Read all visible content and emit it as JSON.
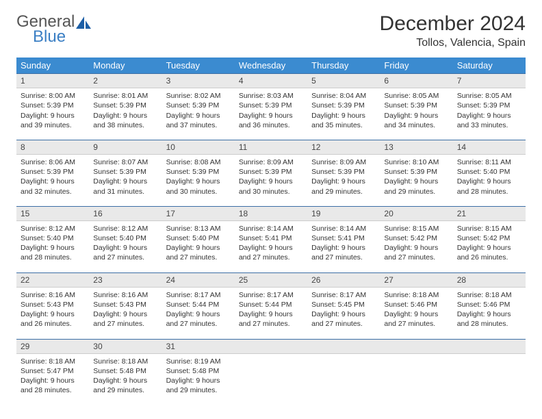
{
  "logo": {
    "word1": "General",
    "word2": "Blue",
    "sail_color": "#1d5fa6"
  },
  "title": "December 2024",
  "location": "Tollos, Valencia, Spain",
  "colors": {
    "header_bg": "#3b8bd0",
    "header_text": "#ffffff",
    "daynum_bg": "#e9e9e9",
    "daynum_border_top": "#3b6ea5",
    "body_text": "#333333"
  },
  "day_headers": [
    "Sunday",
    "Monday",
    "Tuesday",
    "Wednesday",
    "Thursday",
    "Friday",
    "Saturday"
  ],
  "weeks": [
    [
      {
        "n": "1",
        "sr": "8:00 AM",
        "ss": "5:39 PM",
        "dl": "9 hours and 39 minutes."
      },
      {
        "n": "2",
        "sr": "8:01 AM",
        "ss": "5:39 PM",
        "dl": "9 hours and 38 minutes."
      },
      {
        "n": "3",
        "sr": "8:02 AM",
        "ss": "5:39 PM",
        "dl": "9 hours and 37 minutes."
      },
      {
        "n": "4",
        "sr": "8:03 AM",
        "ss": "5:39 PM",
        "dl": "9 hours and 36 minutes."
      },
      {
        "n": "5",
        "sr": "8:04 AM",
        "ss": "5:39 PM",
        "dl": "9 hours and 35 minutes."
      },
      {
        "n": "6",
        "sr": "8:05 AM",
        "ss": "5:39 PM",
        "dl": "9 hours and 34 minutes."
      },
      {
        "n": "7",
        "sr": "8:05 AM",
        "ss": "5:39 PM",
        "dl": "9 hours and 33 minutes."
      }
    ],
    [
      {
        "n": "8",
        "sr": "8:06 AM",
        "ss": "5:39 PM",
        "dl": "9 hours and 32 minutes."
      },
      {
        "n": "9",
        "sr": "8:07 AM",
        "ss": "5:39 PM",
        "dl": "9 hours and 31 minutes."
      },
      {
        "n": "10",
        "sr": "8:08 AM",
        "ss": "5:39 PM",
        "dl": "9 hours and 30 minutes."
      },
      {
        "n": "11",
        "sr": "8:09 AM",
        "ss": "5:39 PM",
        "dl": "9 hours and 30 minutes."
      },
      {
        "n": "12",
        "sr": "8:09 AM",
        "ss": "5:39 PM",
        "dl": "9 hours and 29 minutes."
      },
      {
        "n": "13",
        "sr": "8:10 AM",
        "ss": "5:39 PM",
        "dl": "9 hours and 29 minutes."
      },
      {
        "n": "14",
        "sr": "8:11 AM",
        "ss": "5:40 PM",
        "dl": "9 hours and 28 minutes."
      }
    ],
    [
      {
        "n": "15",
        "sr": "8:12 AM",
        "ss": "5:40 PM",
        "dl": "9 hours and 28 minutes."
      },
      {
        "n": "16",
        "sr": "8:12 AM",
        "ss": "5:40 PM",
        "dl": "9 hours and 27 minutes."
      },
      {
        "n": "17",
        "sr": "8:13 AM",
        "ss": "5:40 PM",
        "dl": "9 hours and 27 minutes."
      },
      {
        "n": "18",
        "sr": "8:14 AM",
        "ss": "5:41 PM",
        "dl": "9 hours and 27 minutes."
      },
      {
        "n": "19",
        "sr": "8:14 AM",
        "ss": "5:41 PM",
        "dl": "9 hours and 27 minutes."
      },
      {
        "n": "20",
        "sr": "8:15 AM",
        "ss": "5:42 PM",
        "dl": "9 hours and 27 minutes."
      },
      {
        "n": "21",
        "sr": "8:15 AM",
        "ss": "5:42 PM",
        "dl": "9 hours and 26 minutes."
      }
    ],
    [
      {
        "n": "22",
        "sr": "8:16 AM",
        "ss": "5:43 PM",
        "dl": "9 hours and 26 minutes."
      },
      {
        "n": "23",
        "sr": "8:16 AM",
        "ss": "5:43 PM",
        "dl": "9 hours and 27 minutes."
      },
      {
        "n": "24",
        "sr": "8:17 AM",
        "ss": "5:44 PM",
        "dl": "9 hours and 27 minutes."
      },
      {
        "n": "25",
        "sr": "8:17 AM",
        "ss": "5:44 PM",
        "dl": "9 hours and 27 minutes."
      },
      {
        "n": "26",
        "sr": "8:17 AM",
        "ss": "5:45 PM",
        "dl": "9 hours and 27 minutes."
      },
      {
        "n": "27",
        "sr": "8:18 AM",
        "ss": "5:46 PM",
        "dl": "9 hours and 27 minutes."
      },
      {
        "n": "28",
        "sr": "8:18 AM",
        "ss": "5:46 PM",
        "dl": "9 hours and 28 minutes."
      }
    ],
    [
      {
        "n": "29",
        "sr": "8:18 AM",
        "ss": "5:47 PM",
        "dl": "9 hours and 28 minutes."
      },
      {
        "n": "30",
        "sr": "8:18 AM",
        "ss": "5:48 PM",
        "dl": "9 hours and 29 minutes."
      },
      {
        "n": "31",
        "sr": "8:19 AM",
        "ss": "5:48 PM",
        "dl": "9 hours and 29 minutes."
      },
      null,
      null,
      null,
      null
    ]
  ],
  "labels": {
    "sunrise": "Sunrise:",
    "sunset": "Sunset:",
    "daylight": "Daylight:"
  }
}
